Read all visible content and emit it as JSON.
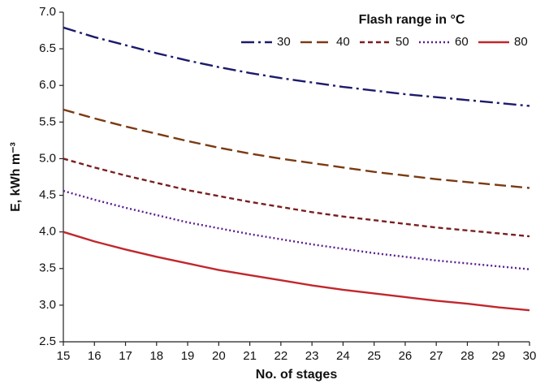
{
  "chart_data": {
    "type": "line",
    "x_label": "No. of stages",
    "y_label": "E, kWh m⁻³",
    "legend_title": "Flash range in °C",
    "legend": "top-right",
    "x": [
      15,
      16,
      17,
      18,
      19,
      20,
      21,
      22,
      23,
      24,
      25,
      26,
      27,
      28,
      29,
      30
    ],
    "xlim": [
      15,
      30
    ],
    "xticks": [
      15,
      16,
      17,
      18,
      19,
      20,
      21,
      22,
      23,
      24,
      25,
      26,
      27,
      28,
      29,
      30
    ],
    "ylim": [
      2.5,
      7.0
    ],
    "yticks": [
      2.5,
      {
        "value": 3.0,
        "label": "3.0"
      },
      3.5,
      {
        "value": 4.0,
        "label": "4.0"
      },
      4.5,
      {
        "value": 5.0,
        "label": "5.0"
      },
      5.5,
      {
        "value": 6.0,
        "label": "6.0"
      },
      6.5,
      {
        "value": 7.0,
        "label": "7.0"
      }
    ],
    "grid": false,
    "series": [
      {
        "name": "30",
        "color": "#1c1a6b",
        "style": "dash-dot",
        "values": [
          6.79,
          6.66,
          6.55,
          6.44,
          6.34,
          6.25,
          6.17,
          6.1,
          6.04,
          5.98,
          5.93,
          5.88,
          5.84,
          5.8,
          5.76,
          5.72
        ]
      },
      {
        "name": "40",
        "color": "#7b3a12",
        "style": "dash",
        "values": [
          5.67,
          5.55,
          5.44,
          5.34,
          5.24,
          5.15,
          5.07,
          5.0,
          4.94,
          4.88,
          4.82,
          4.77,
          4.72,
          4.68,
          4.64,
          4.6
        ]
      },
      {
        "name": "50",
        "color": "#7a1e1e",
        "style": "short-dash",
        "values": [
          5.0,
          4.88,
          4.77,
          4.67,
          4.57,
          4.49,
          4.41,
          4.34,
          4.27,
          4.21,
          4.16,
          4.11,
          4.06,
          4.02,
          3.98,
          3.94
        ]
      },
      {
        "name": "60",
        "color": "#5a1c8c",
        "style": "dot",
        "values": [
          4.56,
          4.44,
          4.33,
          4.23,
          4.13,
          4.05,
          3.97,
          3.9,
          3.83,
          3.77,
          3.71,
          3.66,
          3.61,
          3.57,
          3.53,
          3.49
        ]
      },
      {
        "name": "80",
        "color": "#c1272d",
        "style": "solid",
        "values": [
          4.0,
          3.87,
          3.76,
          3.66,
          3.57,
          3.48,
          3.41,
          3.34,
          3.27,
          3.21,
          3.16,
          3.11,
          3.06,
          3.02,
          2.97,
          2.93
        ]
      }
    ]
  }
}
